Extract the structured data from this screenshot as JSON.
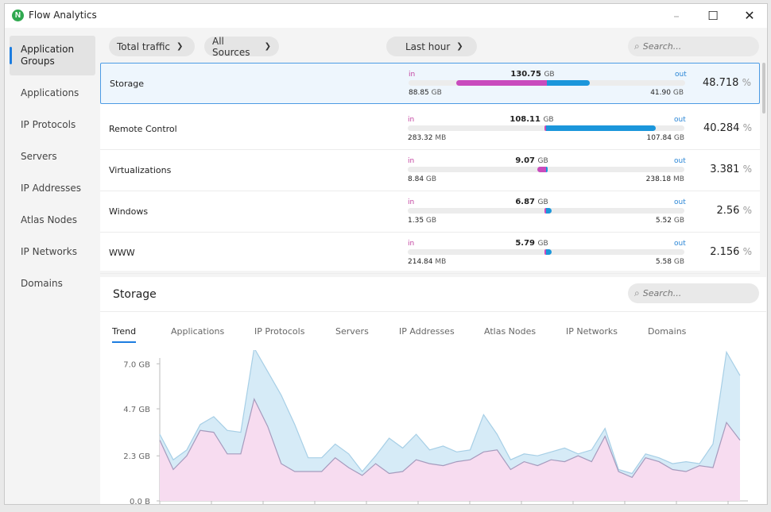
{
  "window": {
    "title": "Flow Analytics",
    "logo_letter": "N",
    "controls": {
      "minimize": "–",
      "maximize": "☐",
      "close": "✕"
    }
  },
  "sidebar": {
    "items": [
      {
        "label": "Application Groups",
        "active": true
      },
      {
        "label": "Applications"
      },
      {
        "label": "IP Protocols"
      },
      {
        "label": "Servers"
      },
      {
        "label": "IP Addresses"
      },
      {
        "label": "Atlas Nodes"
      },
      {
        "label": "IP Networks"
      },
      {
        "label": "Domains"
      }
    ]
  },
  "filters": {
    "traffic": "Total traffic",
    "sources": "All Sources",
    "time": "Last hour",
    "search_placeholder": "Search..."
  },
  "rows": [
    {
      "name": "Storage",
      "in_label": "in",
      "out_label": "out",
      "total": "130.75",
      "total_unit": "GB",
      "in_value": "88.85",
      "in_unit": "GB",
      "out_value": "41.90",
      "out_unit": "GB",
      "in_frac": 0.68,
      "out_frac": 0.32,
      "percent": "48.718",
      "pct_unit": "%"
    },
    {
      "name": "Remote Control",
      "in_label": "in",
      "out_label": "out",
      "total": "108.11",
      "total_unit": "GB",
      "in_value": "283.32",
      "in_unit": "MB",
      "out_value": "107.84",
      "out_unit": "GB",
      "in_frac": 0.003,
      "out_frac": 0.997,
      "percent": "40.284",
      "pct_unit": "%"
    },
    {
      "name": "Virtualizations",
      "in_label": "in",
      "out_label": "out",
      "total": "9.07",
      "total_unit": "GB",
      "in_value": "8.84",
      "in_unit": "GB",
      "out_value": "238.18",
      "out_unit": "MB",
      "in_frac": 0.974,
      "out_frac": 0.026,
      "percent": "3.381",
      "pct_unit": "%"
    },
    {
      "name": "Windows",
      "in_label": "in",
      "out_label": "out",
      "total": "6.87",
      "total_unit": "GB",
      "in_value": "1.35",
      "in_unit": "GB",
      "out_value": "5.52",
      "out_unit": "GB",
      "in_frac": 0.197,
      "out_frac": 0.803,
      "percent": "2.56",
      "pct_unit": "%"
    },
    {
      "name": "WWW",
      "in_label": "in",
      "out_label": "out",
      "total": "5.79",
      "total_unit": "GB",
      "in_value": "214.84",
      "in_unit": "MB",
      "out_value": "5.58",
      "out_unit": "GB",
      "in_frac": 0.037,
      "out_frac": 0.963,
      "percent": "2.156",
      "pct_unit": "%"
    }
  ],
  "row_scale_max_gb": 130.75,
  "detail": {
    "title": "Storage",
    "search_placeholder": "Search...",
    "tabs": [
      {
        "label": "Trend",
        "active": true
      },
      {
        "label": "Applications"
      },
      {
        "label": "IP Protocols"
      },
      {
        "label": "Servers"
      },
      {
        "label": "IP Addresses"
      },
      {
        "label": "Atlas Nodes"
      },
      {
        "label": "IP Networks"
      },
      {
        "label": "Domains"
      }
    ]
  },
  "colors": {
    "accent": "#1d7de0",
    "in": "#c94bbd",
    "out": "#1b96db",
    "area_total": "#d6ebf7",
    "area_in": "#f7dcf0"
  },
  "chart_data": {
    "type": "area",
    "title": "",
    "xlabel": "",
    "ylabel": "",
    "ylim": [
      0,
      7.7
    ],
    "yticks": [
      {
        "value": 0,
        "label": "0.0 B"
      },
      {
        "value": 2.3,
        "label": "2.3 GB"
      },
      {
        "value": 4.7,
        "label": "4.7 GB"
      },
      {
        "value": 7.0,
        "label": "7.0 GB"
      }
    ],
    "grid": false,
    "legend": "none",
    "series": [
      {
        "values": [
          3.4,
          2.1,
          2.6,
          3.9,
          4.3,
          3.6,
          3.5,
          7.8,
          6.6,
          5.4,
          3.9,
          2.2,
          2.2,
          2.9,
          2.4,
          1.5,
          2.3,
          3.2,
          2.7,
          3.4,
          2.6,
          2.8,
          2.5,
          2.6,
          4.4,
          3.4,
          2.1,
          2.4,
          2.3,
          2.5,
          2.7,
          2.4,
          2.6,
          3.7,
          1.6,
          1.4,
          2.4,
          2.2,
          1.9,
          2.0,
          1.9,
          2.9,
          7.6,
          6.4
        ]
      },
      {
        "values": [
          3.1,
          1.6,
          2.3,
          3.6,
          3.5,
          2.4,
          2.4,
          5.2,
          3.8,
          1.9,
          1.5,
          1.5,
          1.5,
          2.2,
          1.7,
          1.3,
          1.9,
          1.4,
          1.5,
          2.1,
          1.9,
          1.8,
          2.0,
          2.1,
          2.5,
          2.6,
          1.6,
          2.0,
          1.8,
          2.1,
          2.0,
          2.3,
          2.0,
          3.3,
          1.5,
          1.2,
          2.2,
          2.0,
          1.6,
          1.5,
          1.8,
          1.7,
          4.0,
          3.1
        ]
      }
    ]
  }
}
